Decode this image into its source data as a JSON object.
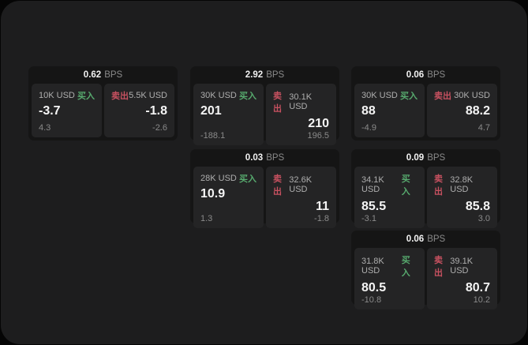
{
  "colors": {
    "page_background": "#050505",
    "panel_background": "#1d1d1e",
    "card_background": "#151515",
    "tile_background": "#242425",
    "buy_green": "#57aa6e",
    "sell_red": "#c75160",
    "value_white": "#f5f5f5",
    "muted_gray": "#8a8a8a"
  },
  "labels": {
    "bps": "BPS",
    "buy": "买入",
    "sell": "卖出"
  },
  "cards": [
    {
      "bps": "0.62",
      "buy": {
        "amount": "10K USD",
        "value": "-3.7",
        "delta": "4.3"
      },
      "sell": {
        "amount": "5.5K USD",
        "value": "-1.8",
        "delta": "-2.6"
      }
    },
    {
      "bps": "2.92",
      "buy": {
        "amount": "30K USD",
        "value": "201",
        "delta": "-188.1"
      },
      "sell": {
        "amount": "30.1K USD",
        "value": "210",
        "delta": "196.5"
      }
    },
    {
      "bps": "0.06",
      "buy": {
        "amount": "30K USD",
        "value": "88",
        "delta": "-4.9"
      },
      "sell": {
        "amount": "30K USD",
        "value": "88.2",
        "delta": "4.7"
      }
    },
    {
      "bps": "0.03",
      "buy": {
        "amount": "28K USD",
        "value": "10.9",
        "delta": "1.3"
      },
      "sell": {
        "amount": "32.6K USD",
        "value": "11",
        "delta": "-1.8"
      }
    },
    {
      "bps": "0.09",
      "buy": {
        "amount": "34.1K USD",
        "value": "85.5",
        "delta": "-3.1"
      },
      "sell": {
        "amount": "32.8K USD",
        "value": "85.8",
        "delta": "3.0"
      }
    },
    {
      "bps": "0.06",
      "buy": {
        "amount": "31.8K USD",
        "value": "80.5",
        "delta": "-10.8"
      },
      "sell": {
        "amount": "39.1K USD",
        "value": "80.7",
        "delta": "10.2"
      }
    }
  ]
}
